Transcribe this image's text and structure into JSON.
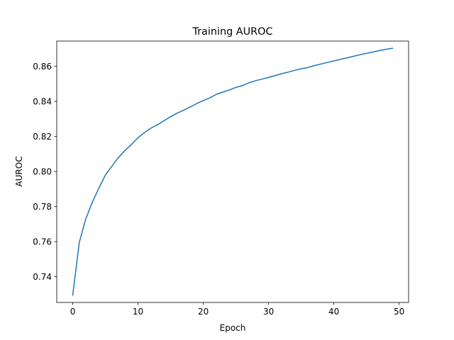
{
  "chart_data": {
    "type": "line",
    "title": "Training AUROC",
    "xlabel": "Epoch",
    "ylabel": "AUROC",
    "xlim": [
      -2.45,
      51.45
    ],
    "ylim": [
      0.7253,
      0.8744
    ],
    "xticks": [
      0,
      10,
      20,
      30,
      40,
      50
    ],
    "yticks": [
      0.74,
      0.76,
      0.78,
      0.8,
      0.82,
      0.84,
      0.86
    ],
    "ytick_labels": [
      "0.74",
      "0.76",
      "0.78",
      "0.80",
      "0.82",
      "0.84",
      "0.86"
    ],
    "grid": false,
    "series": [
      {
        "color": "#1f77b4",
        "x": [
          0,
          1,
          2,
          3,
          4,
          5,
          6,
          7,
          8,
          9,
          10,
          11,
          12,
          13,
          14,
          15,
          16,
          17,
          18,
          19,
          20,
          21,
          22,
          23,
          24,
          25,
          26,
          27,
          28,
          29,
          30,
          31,
          32,
          33,
          34,
          35,
          36,
          37,
          38,
          39,
          40,
          41,
          42,
          43,
          44,
          45,
          46,
          47,
          48,
          49
        ],
        "values": [
          0.7295,
          0.7595,
          0.773,
          0.7825,
          0.7905,
          0.798,
          0.803,
          0.808,
          0.812,
          0.8155,
          0.8193,
          0.8222,
          0.8248,
          0.8267,
          0.829,
          0.8313,
          0.8333,
          0.835,
          0.8368,
          0.8388,
          0.8405,
          0.842,
          0.844,
          0.8453,
          0.8465,
          0.848,
          0.849,
          0.8506,
          0.8518,
          0.8527,
          0.8537,
          0.8547,
          0.8558,
          0.8567,
          0.8577,
          0.8586,
          0.8593,
          0.8604,
          0.8613,
          0.8622,
          0.8631,
          0.864,
          0.8648,
          0.8657,
          0.8666,
          0.8674,
          0.8682,
          0.869,
          0.8697,
          0.8703
        ]
      }
    ]
  }
}
